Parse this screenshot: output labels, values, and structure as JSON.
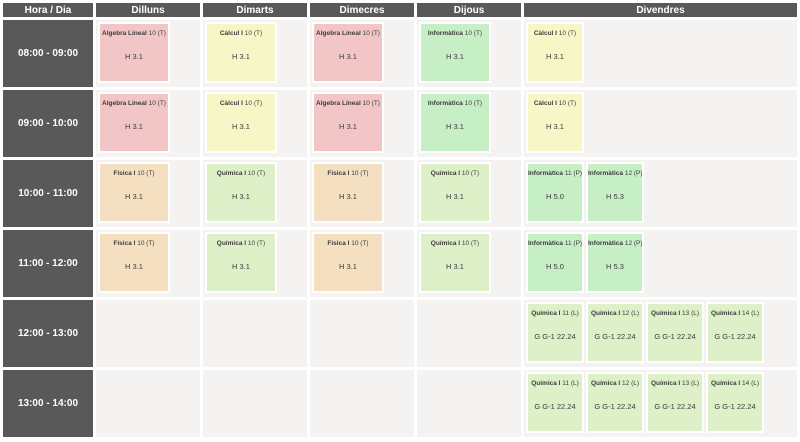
{
  "colors": {
    "header_bg": "#595959",
    "cell_bg": "#f4f3f1",
    "gap": "#ffffff",
    "text": "#3c3c3c",
    "pink": "#f2c6c6",
    "yellow": "#f6f6c6",
    "green": "#c6efc6",
    "light_green": "#def0c8",
    "tan": "#f5dfc1"
  },
  "table": {
    "corner_header": "Hora / Dia",
    "days": [
      "Dilluns",
      "Dimarts",
      "Dimecres",
      "Dijous",
      "Divendres"
    ],
    "rows": [
      {
        "time": "08:00 - 09:00",
        "cells": [
          [
            {
              "subject": "Àlgebra Lineal",
              "suffix": "10 (T)",
              "room": "H 3.1",
              "color": "pink"
            }
          ],
          [
            {
              "subject": "Càlcul I",
              "suffix": "10 (T)",
              "room": "H 3.1",
              "color": "yellow"
            }
          ],
          [
            {
              "subject": "Àlgebra Lineal",
              "suffix": "10 (T)",
              "room": "H 3.1",
              "color": "pink"
            }
          ],
          [
            {
              "subject": "Informàtica",
              "suffix": "10 (T)",
              "room": "H 3.1",
              "color": "green"
            }
          ],
          [
            {
              "subject": "Càlcul I",
              "suffix": "10 (T)",
              "room": "H 3.1",
              "color": "yellow"
            }
          ]
        ]
      },
      {
        "time": "09:00 - 10:00",
        "cells": [
          [
            {
              "subject": "Àlgebra Lineal",
              "suffix": "10 (T)",
              "room": "H 3.1",
              "color": "pink"
            }
          ],
          [
            {
              "subject": "Càlcul I",
              "suffix": "10 (T)",
              "room": "H 3.1",
              "color": "yellow"
            }
          ],
          [
            {
              "subject": "Àlgebra Lineal",
              "suffix": "10 (T)",
              "room": "H 3.1",
              "color": "pink"
            }
          ],
          [
            {
              "subject": "Informàtica",
              "suffix": "10 (T)",
              "room": "H 3.1",
              "color": "green"
            }
          ],
          [
            {
              "subject": "Càlcul I",
              "suffix": "10 (T)",
              "room": "H 3.1",
              "color": "yellow"
            }
          ]
        ]
      },
      {
        "time": "10:00 - 11:00",
        "cells": [
          [
            {
              "subject": "Física I",
              "suffix": "10 (T)",
              "room": "H 3.1",
              "color": "tan"
            }
          ],
          [
            {
              "subject": "Química I",
              "suffix": "10 (T)",
              "room": "H 3.1",
              "color": "light_green"
            }
          ],
          [
            {
              "subject": "Física I",
              "suffix": "10 (T)",
              "room": "H 3.1",
              "color": "tan"
            }
          ],
          [
            {
              "subject": "Química I",
              "suffix": "10 (T)",
              "room": "H 3.1",
              "color": "light_green"
            }
          ],
          [
            {
              "subject": "Informàtica",
              "suffix": "11 (P)",
              "room": "H 5.0",
              "color": "green"
            },
            {
              "subject": "Informàtica",
              "suffix": "12 (P)",
              "room": "H 5.3",
              "color": "green"
            }
          ]
        ]
      },
      {
        "time": "11:00 - 12:00",
        "cells": [
          [
            {
              "subject": "Física I",
              "suffix": "10 (T)",
              "room": "H 3.1",
              "color": "tan"
            }
          ],
          [
            {
              "subject": "Química I",
              "suffix": "10 (T)",
              "room": "H 3.1",
              "color": "light_green"
            }
          ],
          [
            {
              "subject": "Física I",
              "suffix": "10 (T)",
              "room": "H 3.1",
              "color": "tan"
            }
          ],
          [
            {
              "subject": "Química I",
              "suffix": "10 (T)",
              "room": "H 3.1",
              "color": "light_green"
            }
          ],
          [
            {
              "subject": "Informàtica",
              "suffix": "11 (P)",
              "room": "H 5.0",
              "color": "green"
            },
            {
              "subject": "Informàtica",
              "suffix": "12 (P)",
              "room": "H 5.3",
              "color": "green"
            }
          ]
        ]
      },
      {
        "time": "12:00 - 13:00",
        "cells": [
          [],
          [],
          [],
          [],
          [
            {
              "subject": "Química I",
              "suffix": "11 (L)",
              "room": "G G-1 22.24",
              "color": "light_green"
            },
            {
              "subject": "Química I",
              "suffix": "12 (L)",
              "room": "G G-1 22.24",
              "color": "light_green"
            },
            {
              "subject": "Química I",
              "suffix": "13 (L)",
              "room": "G G-1 22.24",
              "color": "light_green"
            },
            {
              "subject": "Química I",
              "suffix": "14 (L)",
              "room": "G G-1 22.24",
              "color": "light_green"
            }
          ]
        ]
      },
      {
        "time": "13:00 - 14:00",
        "cells": [
          [],
          [],
          [],
          [],
          [
            {
              "subject": "Química I",
              "suffix": "11 (L)",
              "room": "G G-1 22.24",
              "color": "light_green"
            },
            {
              "subject": "Química I",
              "suffix": "12 (L)",
              "room": "G G-1 22.24",
              "color": "light_green"
            },
            {
              "subject": "Química I",
              "suffix": "13 (L)",
              "room": "G G-1 22.24",
              "color": "light_green"
            },
            {
              "subject": "Química I",
              "suffix": "14 (L)",
              "room": "G G-1 22.24",
              "color": "light_green"
            }
          ]
        ]
      }
    ]
  }
}
